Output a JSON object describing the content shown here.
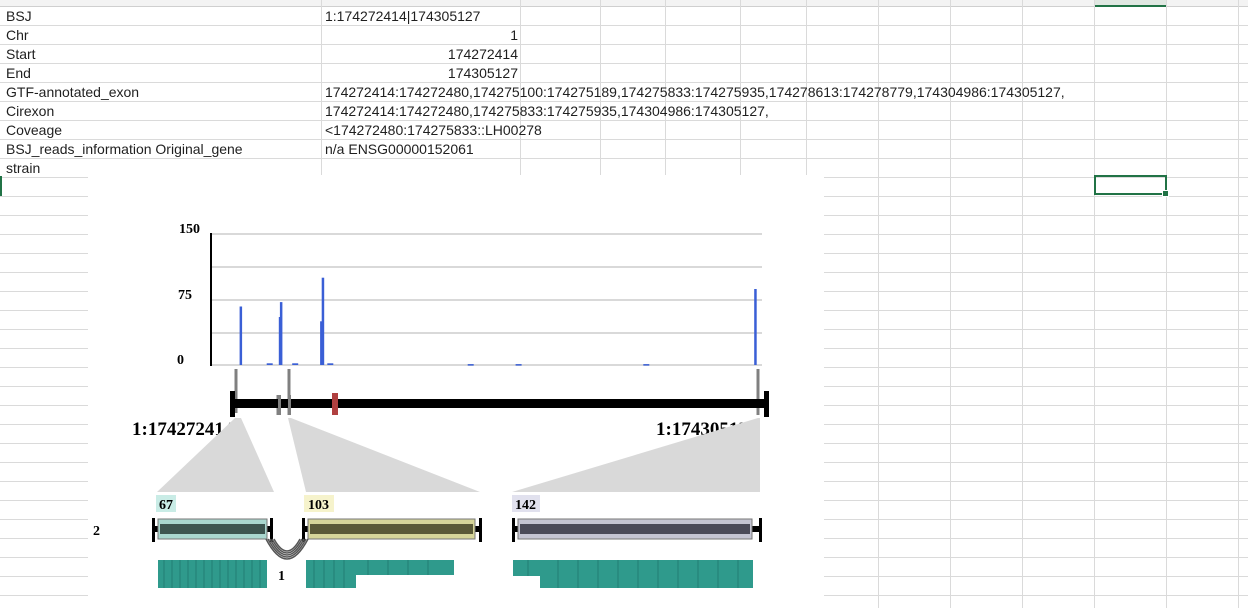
{
  "spreadsheet": {
    "rows": [
      {
        "label": "BSJ",
        "value": "1:174272414|174305127"
      },
      {
        "label": "Chr",
        "value": "1"
      },
      {
        "label": "Start",
        "value": "174272414"
      },
      {
        "label": "End",
        "value": "174305127"
      },
      {
        "label": "GTF-annotated_exon",
        "value": "174272414:174272480,174275100:174275189,174275833:174275935,174278613:174278779,174304986:174305127,"
      },
      {
        "label": "Cirexon",
        "value": "174272414:174272480,174275833:174275935,174304986:174305127,"
      },
      {
        "label": "Coveage",
        "value": "<174272480:174275833::LH00278"
      },
      {
        "label": "BSJ_reads_information Original_gene",
        "value": "n/a ENSG00000152061"
      },
      {
        "label": "strain",
        "value": ""
      }
    ]
  },
  "figure": {
    "y_ticks": [
      "150",
      "75",
      "0"
    ],
    "start_label": "1:174272414",
    "end_label": "1:174305127",
    "exon_labels": [
      "67",
      "103",
      "142"
    ],
    "row_number": "2",
    "junction_count": "1",
    "colors": {
      "coverage_bar": "#3a5fd6",
      "exon1": "#a9d7cf",
      "exon2": "#d6d59a",
      "exon3": "#c4c4d2",
      "exon_core": "#4a4a4a",
      "reads": "#2f9a8c",
      "bsj_marker": "#b04040"
    }
  },
  "chart_data": {
    "type": "bar",
    "title": "",
    "xlabel": "",
    "ylabel": "",
    "ylim": [
      0,
      150
    ],
    "x_range": [
      174272414,
      174305127
    ],
    "series": [
      {
        "values": [
          [
            174272700,
            67
          ],
          [
            174275160,
            55
          ],
          [
            174275230,
            72
          ],
          [
            174277750,
            50
          ],
          [
            174277850,
            100
          ],
          [
            174304950,
            87
          ],
          [
            174274400,
            2
          ],
          [
            174276000,
            2
          ],
          [
            174278200,
            2
          ],
          [
            174287000,
            1
          ],
          [
            174290000,
            1
          ],
          [
            174298000,
            1
          ]
        ]
      }
    ]
  }
}
